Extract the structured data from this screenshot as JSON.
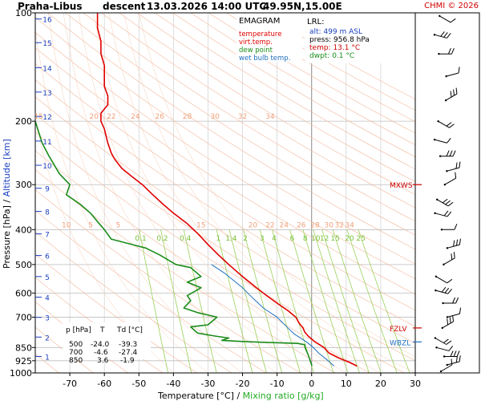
{
  "header": {
    "station": "Praha-Libus",
    "flight_phase": "descent",
    "datetime": "13.03.2026 14:00 UTC",
    "position": "49.95N,15.00E",
    "copyright": "CHMI © 2026"
  },
  "legend": {
    "title": "EMAGRAM",
    "items": [
      {
        "label": "temperature",
        "color": "#e00000"
      },
      {
        "label": "virt.temp.",
        "color": "#e00000"
      },
      {
        "label": "dew point",
        "color": "#1a8c1a"
      },
      {
        "label": "wet bulb temp.",
        "color": "#2070c0"
      }
    ]
  },
  "lrl": {
    "title": "LRL:",
    "alt": "alt: 499 m ASL",
    "press": "press: 956.8 hPa",
    "temp": "temp: 13.1 °C",
    "dwpt": "dwpt: 0.1 °C"
  },
  "table": {
    "headers": [
      "p [hPa]",
      "T",
      "Td [°C]"
    ],
    "rows": [
      [
        "500",
        "-24.0",
        "-39.3"
      ],
      [
        "700",
        "-4.6",
        "-27.4"
      ],
      [
        "850",
        "3.6",
        "-1.9"
      ]
    ]
  },
  "level_markers": [
    {
      "label": "MXWS",
      "pressure": 300,
      "color": "#d00000"
    },
    {
      "label": "FZLV",
      "pressure": 750,
      "color": "#d00000"
    },
    {
      "label": "WBZL",
      "pressure": 820,
      "color": "#2070c0"
    }
  ],
  "chart_data": {
    "type": "line",
    "xlabel": "Temperature [°C]",
    "xlabel_sep": "/",
    "xlabel2": "Mixing ratio [g/kg]",
    "ylabel": "Pressure [hPa]",
    "ylabel_sep": "/",
    "ylabel2": "Altitude [km]",
    "x_ticks": [
      -70,
      -60,
      -50,
      -40,
      -30,
      -20,
      -10,
      0,
      10,
      20,
      30
    ],
    "xlim": [
      -80,
      30
    ],
    "y_ticks": [
      100,
      200,
      300,
      400,
      500,
      600,
      700,
      850,
      925,
      1000
    ],
    "ylim": [
      100,
      1000
    ],
    "y_scale": "log",
    "altitude_ticks_km": [
      1,
      2,
      3,
      4,
      5,
      6,
      7,
      8,
      9,
      10,
      11,
      12,
      13,
      14,
      15,
      16
    ],
    "altitude_pressures": [
      900,
      795,
      701,
      616,
      540,
      472,
      411,
      356,
      307,
      265,
      227,
      194,
      166,
      142,
      121,
      104
    ],
    "mixing_ratio_labels": [
      "0.1",
      "0.2",
      "0.4",
      "1",
      "1.4",
      "2",
      "3",
      "4",
      "6",
      "8",
      "10",
      "12",
      "15",
      "20",
      "25"
    ],
    "mixing_ratio_label_pressure": 420,
    "theta_labels_upper": [
      {
        "label": "15",
        "x": -79,
        "p": 200
      },
      {
        "label": "20",
        "x": -63,
        "p": 200
      },
      {
        "label": "22",
        "x": -58,
        "p": 200
      },
      {
        "label": "24",
        "x": -51,
        "p": 200
      },
      {
        "label": "26",
        "x": -44,
        "p": 200
      },
      {
        "label": "28",
        "x": -36,
        "p": 200
      },
      {
        "label": "30",
        "x": -28,
        "p": 200
      },
      {
        "label": "32",
        "x": -20,
        "p": 200
      },
      {
        "label": "34",
        "x": -12,
        "p": 200
      }
    ],
    "theta_labels_lower": [
      {
        "label": "10",
        "x": -71,
        "p": 400
      },
      {
        "label": "5",
        "x": -64,
        "p": 400
      },
      {
        "label": "5",
        "x": -56,
        "p": 400
      },
      {
        "label": "15",
        "x": -32,
        "p": 400
      },
      {
        "label": "20",
        "x": -17,
        "p": 400
      },
      {
        "label": "22",
        "x": -12,
        "p": 400
      },
      {
        "label": "24",
        "x": -8,
        "p": 400
      },
      {
        "label": "26",
        "x": -3,
        "p": 400
      },
      {
        "label": "28",
        "x": 1,
        "p": 400
      },
      {
        "label": "30",
        "x": 5,
        "p": 400
      },
      {
        "label": "32",
        "x": 8,
        "p": 400
      },
      {
        "label": "34",
        "x": 11,
        "p": 400
      }
    ],
    "series": [
      {
        "name": "temperature",
        "color": "#e00000",
        "points": [
          [
            13.1,
            956.8
          ],
          [
            11,
            935
          ],
          [
            8,
            910
          ],
          [
            5,
            880
          ],
          [
            3.6,
            850
          ],
          [
            1,
            820
          ],
          [
            -1,
            790
          ],
          [
            -2,
            770
          ],
          [
            -2.5,
            750
          ],
          [
            -3.5,
            730
          ],
          [
            -4.6,
            700
          ],
          [
            -7,
            670
          ],
          [
            -10,
            640
          ],
          [
            -13,
            610
          ],
          [
            -16,
            580
          ],
          [
            -20,
            540
          ],
          [
            -24,
            500
          ],
          [
            -27,
            470
          ],
          [
            -30,
            440
          ],
          [
            -33,
            410
          ],
          [
            -36,
            385
          ],
          [
            -40,
            360
          ],
          [
            -43,
            340
          ],
          [
            -46,
            320
          ],
          [
            -49,
            300
          ],
          [
            -52,
            285
          ],
          [
            -55,
            270
          ],
          [
            -57,
            255
          ],
          [
            -58,
            245
          ],
          [
            -59,
            230
          ],
          [
            -60,
            210
          ],
          [
            -61,
            200
          ],
          [
            -61,
            190
          ],
          [
            -59,
            180
          ],
          [
            -59,
            170
          ],
          [
            -60,
            160
          ],
          [
            -60,
            150
          ],
          [
            -60,
            140
          ],
          [
            -61,
            130
          ],
          [
            -61,
            120
          ],
          [
            -62,
            110
          ],
          [
            -62,
            100
          ]
        ]
      },
      {
        "name": "dew point",
        "color": "#1a8c1a",
        "points": [
          [
            0.1,
            956.8
          ],
          [
            -0.5,
            920
          ],
          [
            -1,
            890
          ],
          [
            -1.9,
            850
          ],
          [
            -2,
            835
          ],
          [
            -4,
            828
          ],
          [
            -14,
            822
          ],
          [
            -20,
            818
          ],
          [
            -26,
            812
          ],
          [
            -24,
            800
          ],
          [
            -28,
            790
          ],
          [
            -33,
            775
          ],
          [
            -34,
            760
          ],
          [
            -35,
            745
          ],
          [
            -30,
            735
          ],
          [
            -27.4,
            700
          ],
          [
            -33,
            680
          ],
          [
            -37,
            660
          ],
          [
            -35,
            630
          ],
          [
            -36,
            610
          ],
          [
            -32,
            580
          ],
          [
            -36,
            560
          ],
          [
            -32,
            540
          ],
          [
            -35,
            510
          ],
          [
            -39.3,
            500
          ],
          [
            -44,
            470
          ],
          [
            -48,
            450
          ],
          [
            -52,
            440
          ],
          [
            -58,
            425
          ],
          [
            -60,
            400
          ],
          [
            -62,
            380
          ],
          [
            -64,
            360
          ],
          [
            -67,
            340
          ],
          [
            -71,
            320
          ],
          [
            -70,
            300
          ],
          [
            -73,
            280
          ],
          [
            -76,
            250
          ],
          [
            -78,
            230
          ],
          [
            -80,
            200
          ]
        ]
      },
      {
        "name": "wet bulb temp.",
        "color": "#2070c0",
        "points": [
          [
            6.5,
            956.8
          ],
          [
            4.5,
            920
          ],
          [
            2,
            880
          ],
          [
            0.5,
            850
          ],
          [
            -1.5,
            820
          ],
          [
            -5,
            780
          ],
          [
            -7.5,
            740
          ],
          [
            -10,
            700
          ],
          [
            -14,
            660
          ],
          [
            -17,
            620
          ],
          [
            -20,
            580
          ],
          [
            -25,
            530
          ],
          [
            -29,
            500
          ]
        ]
      }
    ],
    "wind_barbs": [
      {
        "p": 990
      },
      {
        "p": 950
      },
      {
        "p": 900
      },
      {
        "p": 850
      },
      {
        "p": 800
      },
      {
        "p": 750
      },
      {
        "p": 700
      },
      {
        "p": 640
      },
      {
        "p": 590
      },
      {
        "p": 540
      },
      {
        "p": 500
      },
      {
        "p": 450
      },
      {
        "p": 400
      },
      {
        "p": 360
      },
      {
        "p": 330
      },
      {
        "p": 300
      },
      {
        "p": 275
      },
      {
        "p": 250
      },
      {
        "p": 225
      },
      {
        "p": 200
      },
      {
        "p": 175
      },
      {
        "p": 150
      },
      {
        "p": 130
      },
      {
        "p": 115
      },
      {
        "p": 102
      }
    ],
    "grid": true
  }
}
